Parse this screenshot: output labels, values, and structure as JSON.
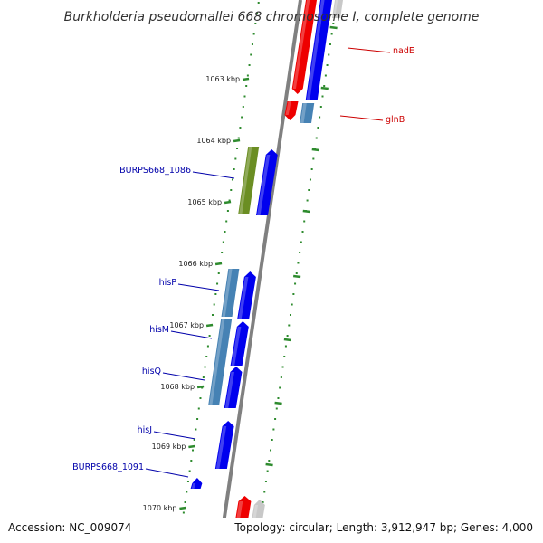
{
  "title": "Burkholderia pseudomallei 668 chromosome I, complete genome",
  "accession": "Accession: NC_009074",
  "topology": "Topology: circular; Length: 3,912,947 bp; Genes: 4,000",
  "colors": {
    "forward_cds": "#0000ee",
    "rna": "#ee0000",
    "gray_feature": "#c8c8c8",
    "olive_feature": "#6b8e23",
    "steelblue_feature": "#4682b4",
    "backbone": "#808080",
    "ticks": "#2e8b2e",
    "gene_label_blue": "#0000aa",
    "gene_label_red": "#cc0000"
  },
  "kbp_ticks": [
    "1063 kbp",
    "1064 kbp",
    "1065 kbp",
    "1066 kbp",
    "1067 kbp",
    "1068 kbp",
    "1069 kbp",
    "1070 kbp"
  ],
  "gene_labels": [
    {
      "text": "nadE",
      "color": "red"
    },
    {
      "text": "glnB",
      "color": "red"
    },
    {
      "text": "BURPS668_1086",
      "color": "blue"
    },
    {
      "text": "hisP",
      "color": "blue"
    },
    {
      "text": "hisM",
      "color": "blue"
    },
    {
      "text": "hisQ",
      "color": "blue"
    },
    {
      "text": "hisJ",
      "color": "blue"
    },
    {
      "text": "BURPS668_1091",
      "color": "blue"
    }
  ]
}
